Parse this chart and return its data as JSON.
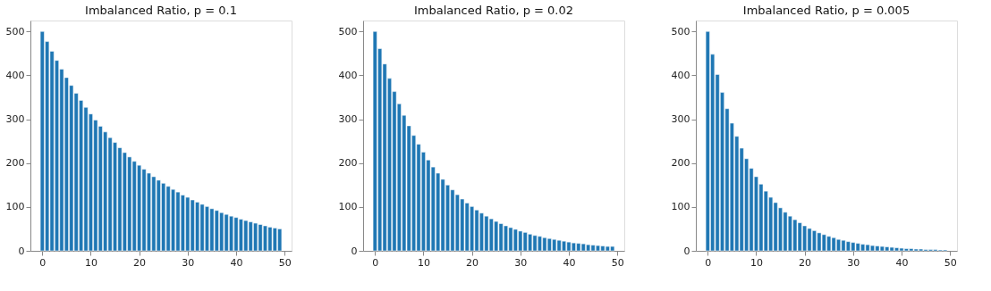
{
  "chart_data": [
    {
      "type": "bar",
      "title": "Imbalanced Ratio, p = 0.1",
      "x": [
        0,
        1,
        2,
        3,
        4,
        5,
        6,
        7,
        8,
        9,
        10,
        11,
        12,
        13,
        14,
        15,
        16,
        17,
        18,
        19,
        20,
        21,
        22,
        23,
        24,
        25,
        26,
        27,
        28,
        29,
        30,
        31,
        32,
        33,
        34,
        35,
        36,
        37,
        38,
        39,
        40,
        41,
        42,
        43,
        44,
        45,
        46,
        47,
        48,
        49
      ],
      "series": [
        {
          "color": "#1f77b4",
          "values": [
            500,
            477,
            455,
            434,
            414,
            395,
            377,
            359,
            343,
            327,
            312,
            298,
            284,
            271,
            258,
            247,
            235,
            224,
            214,
            204,
            195,
            186,
            177,
            169,
            161,
            154,
            147,
            140,
            134,
            127,
            122,
            116,
            111,
            106,
            101,
            96,
            92,
            87,
            83,
            79,
            76,
            72,
            69,
            66,
            63,
            60,
            57,
            54,
            52,
            50
          ]
        }
      ],
      "xlim": [
        -2.45,
        51.45
      ],
      "xticks": [
        0,
        10,
        20,
        30,
        40,
        50
      ],
      "ylim": [
        0,
        525
      ],
      "yticks": [
        0,
        100,
        200,
        300,
        400,
        500
      ],
      "grid": false
    },
    {
      "type": "bar",
      "title": "Imbalanced Ratio, p = 0.02",
      "x": [
        0,
        1,
        2,
        3,
        4,
        5,
        6,
        7,
        8,
        9,
        10,
        11,
        12,
        13,
        14,
        15,
        16,
        17,
        18,
        19,
        20,
        21,
        22,
        23,
        24,
        25,
        26,
        27,
        28,
        29,
        30,
        31,
        32,
        33,
        34,
        35,
        36,
        37,
        38,
        39,
        40,
        41,
        42,
        43,
        44,
        45,
        46,
        47,
        48,
        49
      ],
      "series": [
        {
          "color": "#1f77b4",
          "values": [
            500,
            461,
            426,
            393,
            363,
            335,
            309,
            285,
            263,
            243,
            225,
            207,
            191,
            177,
            163,
            150,
            139,
            128,
            118,
            109,
            101,
            93,
            86,
            79,
            73,
            67,
            62,
            57,
            53,
            49,
            45,
            42,
            38,
            35,
            33,
            30,
            28,
            26,
            24,
            22,
            20,
            18,
            17,
            16,
            14,
            13,
            12,
            11,
            10,
            10
          ]
        }
      ],
      "xlim": [
        -2.45,
        51.45
      ],
      "xticks": [
        0,
        10,
        20,
        30,
        40,
        50
      ],
      "ylim": [
        0,
        525
      ],
      "yticks": [
        0,
        100,
        200,
        300,
        400,
        500
      ],
      "grid": false
    },
    {
      "type": "bar",
      "title": "Imbalanced Ratio, p = 0.005",
      "x": [
        0,
        1,
        2,
        3,
        4,
        5,
        6,
        7,
        8,
        9,
        10,
        11,
        12,
        13,
        14,
        15,
        16,
        17,
        18,
        19,
        20,
        21,
        22,
        23,
        24,
        25,
        26,
        27,
        28,
        29,
        30,
        31,
        32,
        33,
        34,
        35,
        36,
        37,
        38,
        39,
        40,
        41,
        42,
        43,
        44,
        45,
        46,
        47,
        48,
        49
      ],
      "series": [
        {
          "color": "#1f77b4",
          "values": [
            500,
            448,
            402,
            361,
            324,
            291,
            261,
            234,
            210,
            188,
            169,
            152,
            136,
            122,
            110,
            98,
            88,
            79,
            71,
            64,
            57,
            51,
            46,
            41,
            37,
            33,
            30,
            26,
            24,
            21,
            19,
            17,
            15,
            14,
            12,
            11,
            10,
            9,
            8,
            7,
            6,
            5,
            5,
            4,
            4,
            3,
            3,
            3,
            2,
            2
          ]
        }
      ],
      "xlim": [
        -2.45,
        51.45
      ],
      "xticks": [
        0,
        10,
        20,
        30,
        40,
        50
      ],
      "ylim": [
        0,
        525
      ],
      "yticks": [
        0,
        100,
        200,
        300,
        400,
        500
      ],
      "grid": false
    }
  ]
}
